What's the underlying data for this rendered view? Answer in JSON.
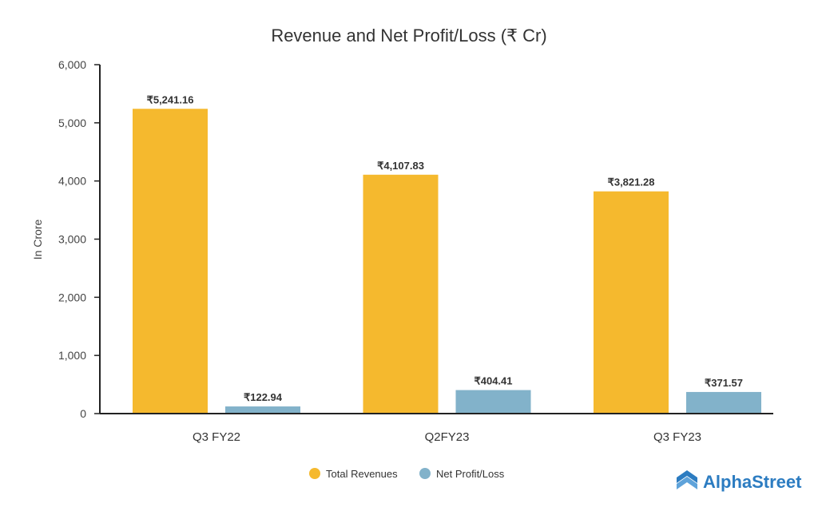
{
  "chart_data": {
    "type": "bar",
    "title": "Revenue and Net Profit/Loss (₹ Cr)",
    "xlabel": "",
    "ylabel": "In Crore",
    "ylim": [
      0,
      6000
    ],
    "yticks": [
      0,
      1000,
      2000,
      3000,
      4000,
      5000,
      6000
    ],
    "ytick_labels": [
      "0",
      "1,000",
      "2,000",
      "3,000",
      "4,000",
      "5,000",
      "6,000"
    ],
    "categories": [
      "Q3 FY22",
      "Q2FY23",
      "Q3 FY23"
    ],
    "series": [
      {
        "name": "Total Revenues",
        "color": "#F5B92E",
        "values": [
          5241.16,
          4107.83,
          3821.28
        ],
        "labels": [
          "₹5,241.16",
          "₹4,107.83",
          "₹3,821.28"
        ]
      },
      {
        "name": "Net Profit/Loss",
        "color": "#82B2CA",
        "values": [
          122.94,
          404.41,
          371.57
        ],
        "labels": [
          "₹122.94",
          "₹404.41",
          "₹371.57"
        ]
      }
    ],
    "legend": "bottom",
    "grid": false
  },
  "logo": {
    "text": "AlphaStreet",
    "color": "#2C7CC1"
  }
}
